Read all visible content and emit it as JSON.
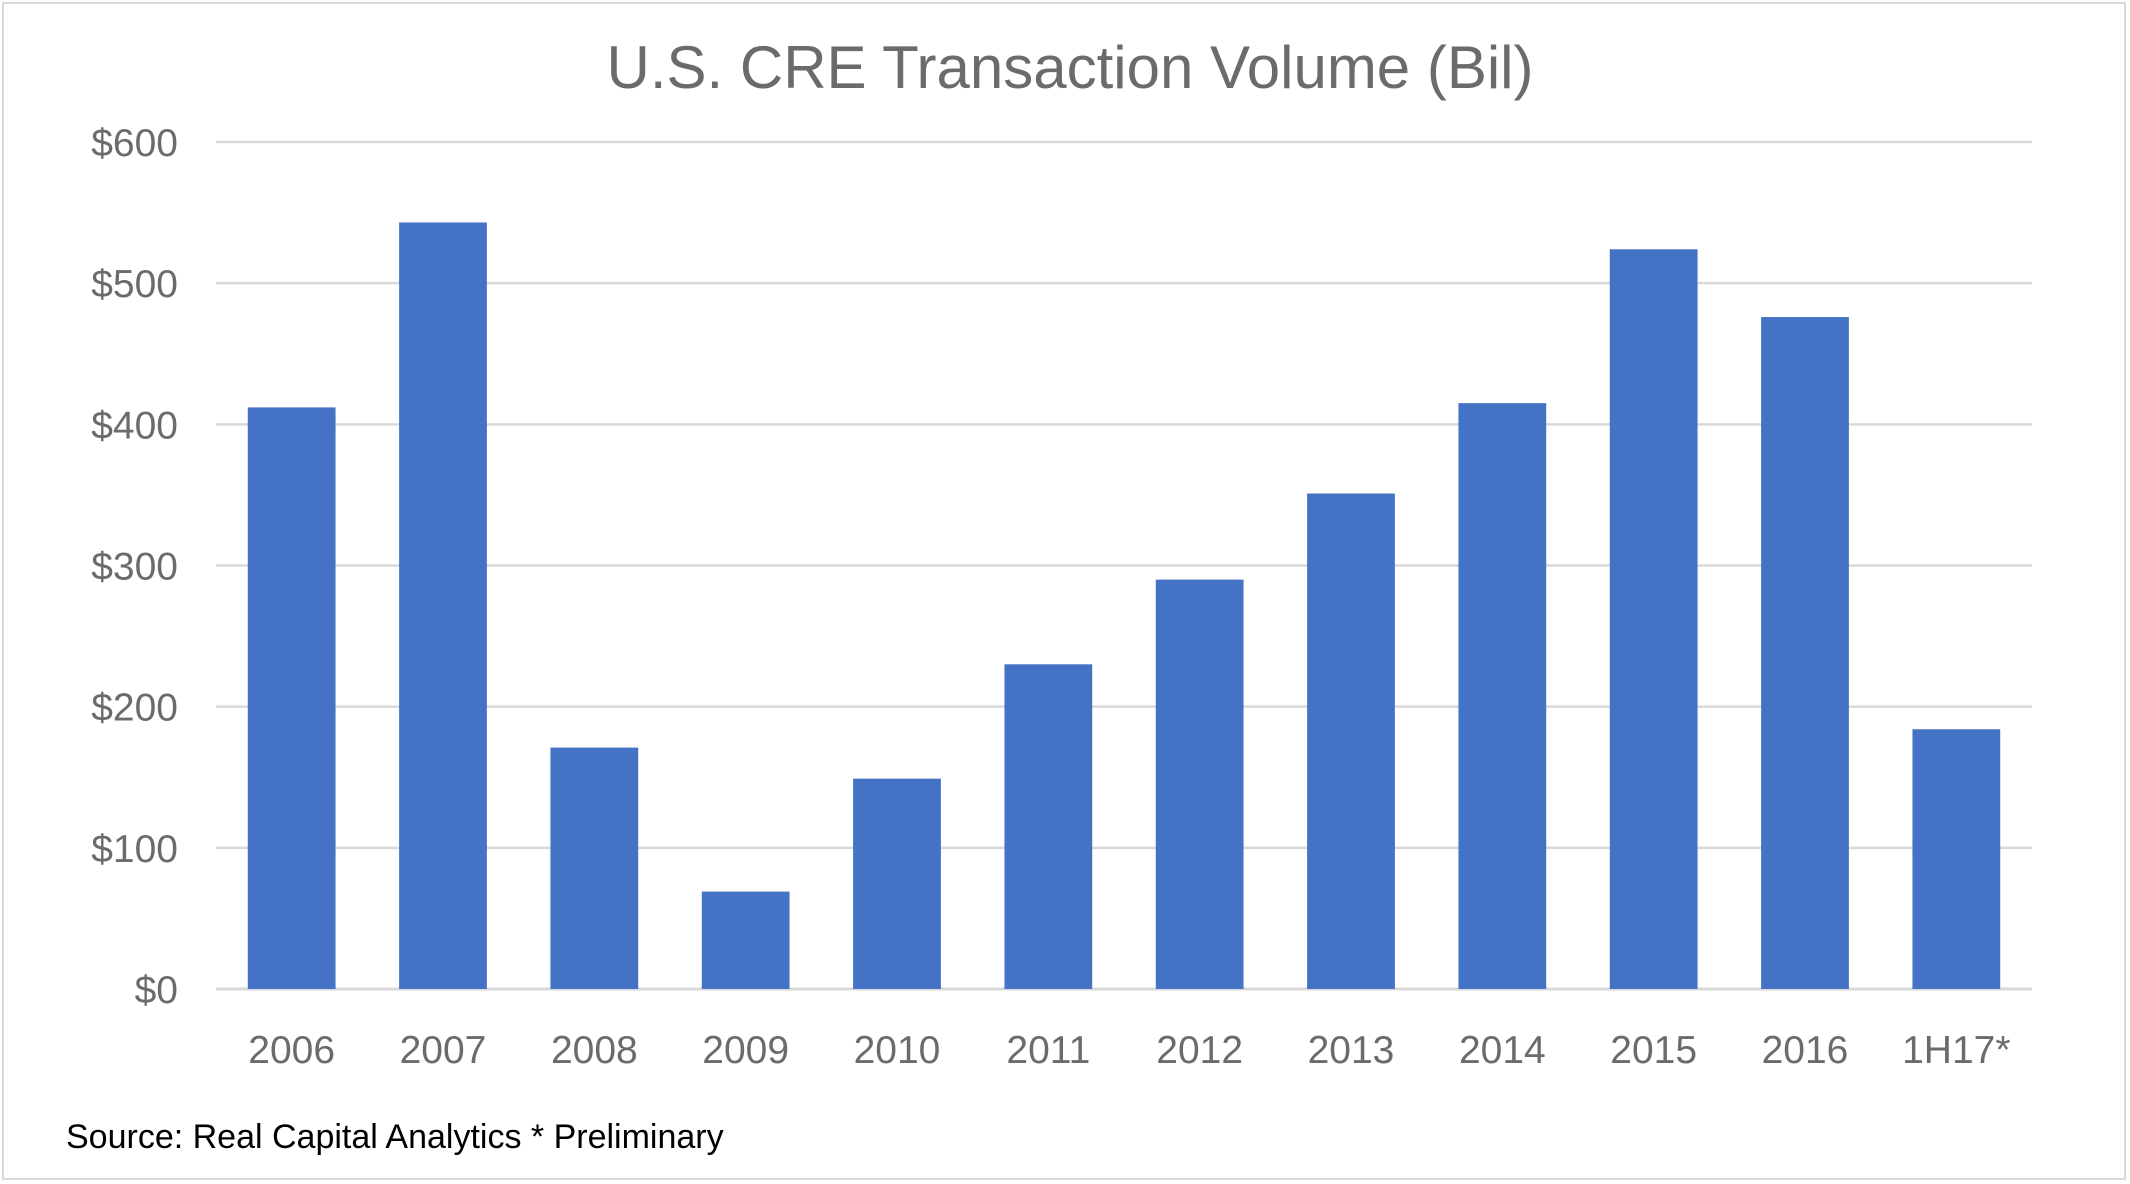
{
  "chart_data": {
    "type": "bar",
    "title": "U.S. CRE Transaction Volume (Bil)",
    "xlabel": "",
    "ylabel": "",
    "categories": [
      "2006",
      "2007",
      "2008",
      "2009",
      "2010",
      "2011",
      "2012",
      "2013",
      "2014",
      "2015",
      "2016",
      "1H17*"
    ],
    "values": [
      412,
      543,
      171,
      69,
      149,
      230,
      290,
      351,
      415,
      524,
      476,
      184
    ],
    "ylim": [
      0,
      600
    ],
    "yticks": [
      0,
      100,
      200,
      300,
      400,
      500,
      600
    ],
    "ytick_labels": [
      "$0",
      "$100",
      "$200",
      "$300",
      "$400",
      "$500",
      "$600"
    ],
    "grid": true,
    "legend": "none",
    "bar_color": "#4472C4",
    "gridline_color": "#d9d9d9"
  },
  "footnote": "Source: Real Capital Analytics * Preliminary"
}
